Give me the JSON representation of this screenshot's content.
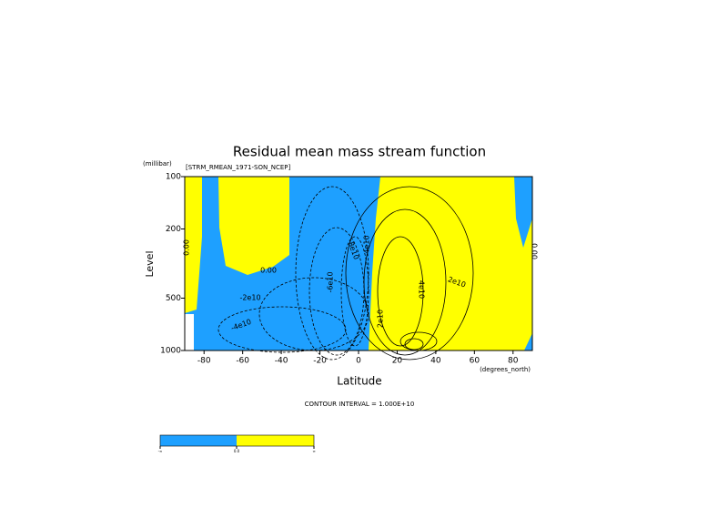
{
  "chart_data": {
    "type": "contour",
    "title": "Residual mean mass stream function",
    "subtitle": "[STRM_RMEAN_1971-SON_NCEP]",
    "y_unit": "(millibar)",
    "ylabel": "Level",
    "xlabel": "Latitude",
    "x_unit": "(degrees_north)",
    "xlim": [
      -90,
      90
    ],
    "xticks": [
      -80,
      -60,
      -40,
      -20,
      0,
      20,
      40,
      60,
      80
    ],
    "ylim": [
      1000,
      100
    ],
    "yticks": [
      100,
      200,
      500,
      1000
    ],
    "y_log": true,
    "fill_colors": [
      "#1ea0ff",
      "#ffff00"
    ],
    "contour_labels": [
      "0.00",
      "0.00",
      "0.00",
      "-2e10",
      "-4e10",
      "-6e10",
      "-8e10",
      "-4e10",
      "2e10",
      "4e10",
      "2e10"
    ],
    "contour_interval": "CONTOUR INTERVAL = 1.000E+10",
    "colorbar_labels": [
      "-∞",
      "0.0",
      "∞"
    ]
  }
}
